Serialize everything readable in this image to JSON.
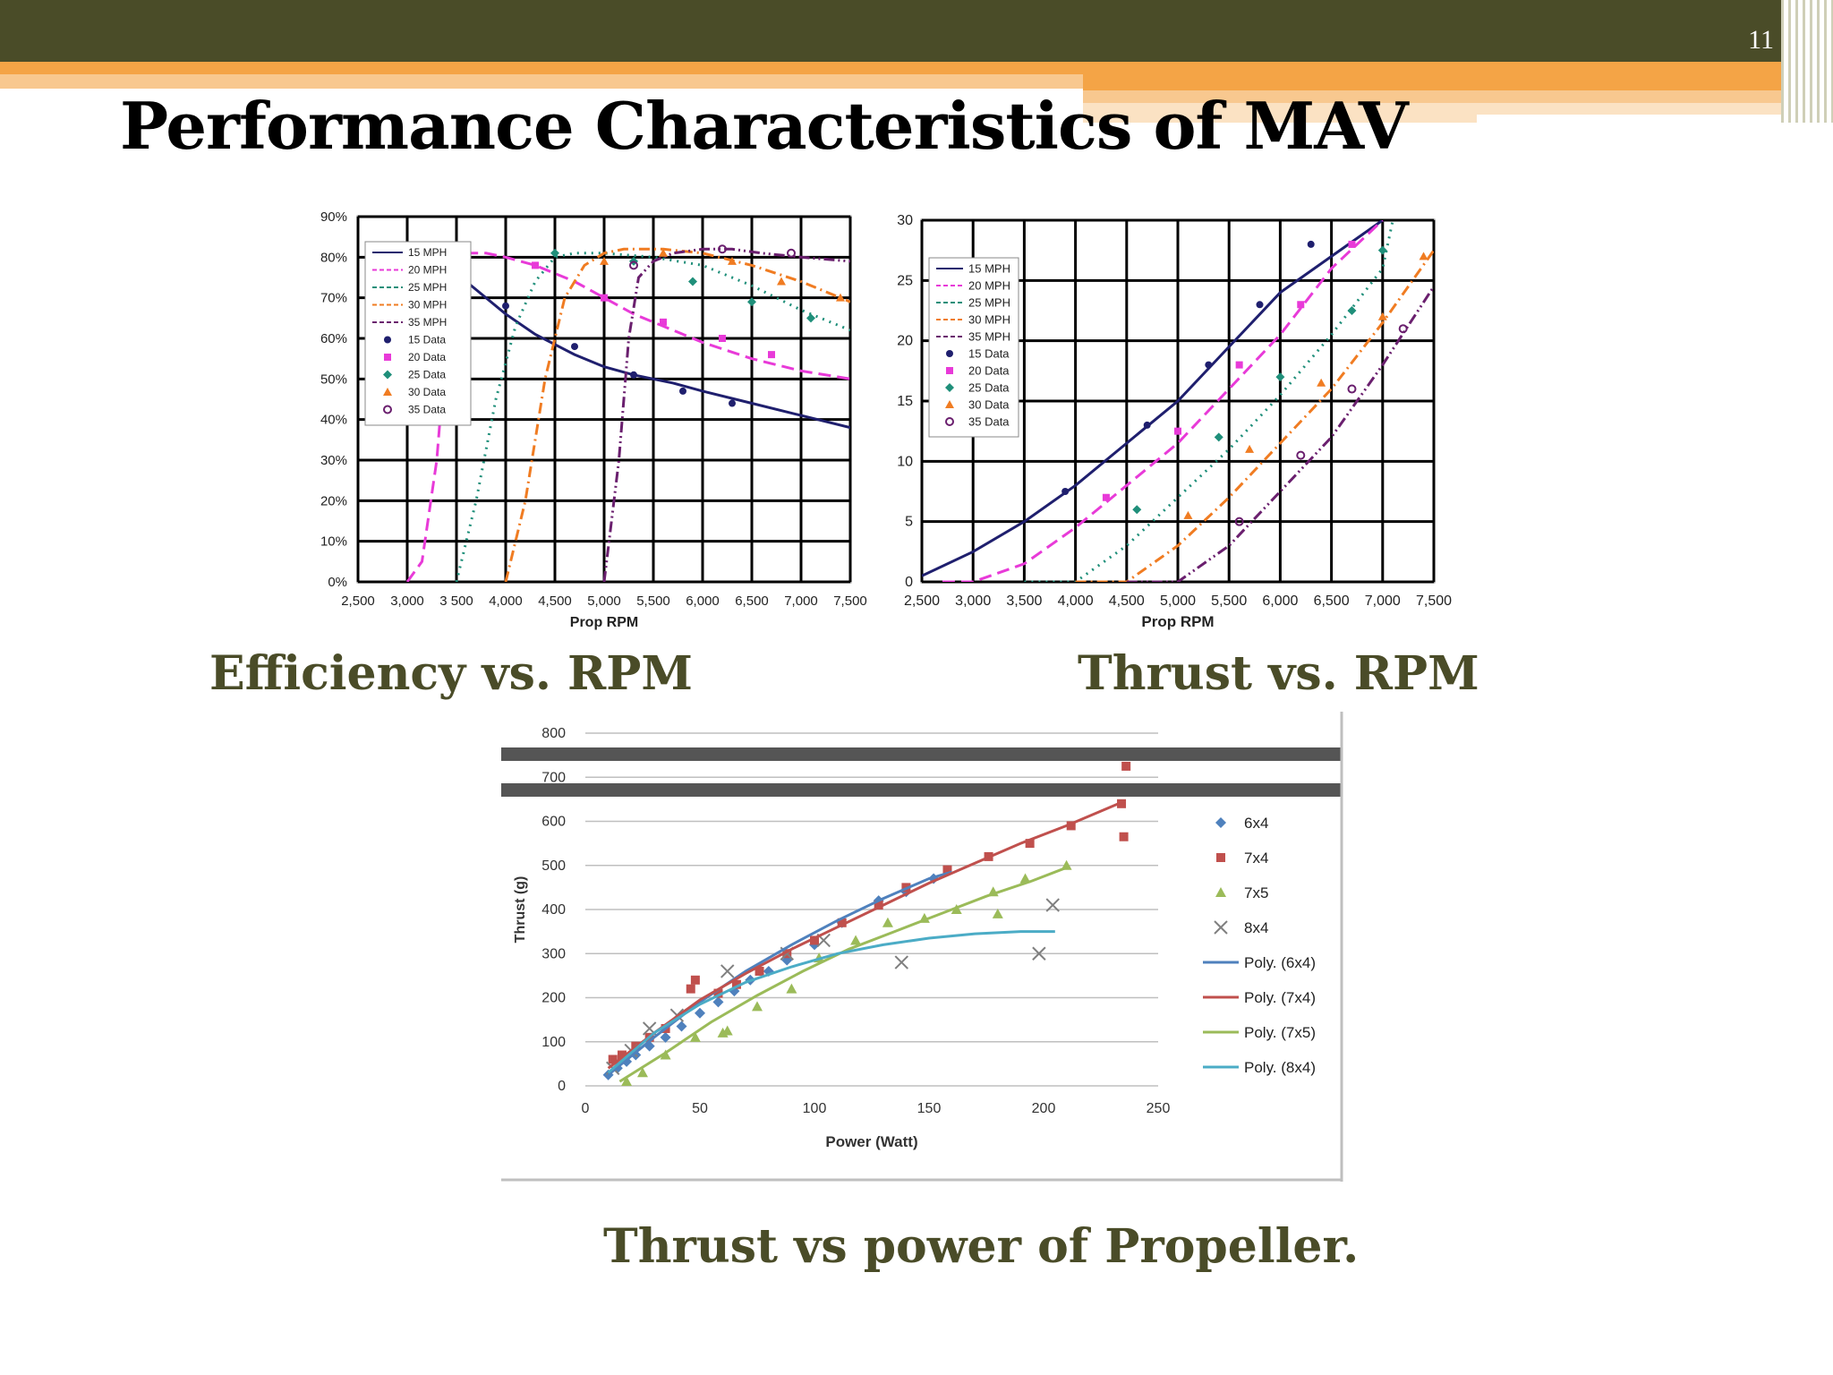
{
  "slide": {
    "number": "11",
    "title": "Performance Characteristics of MAV",
    "colors": {
      "bar": "#4a4c28",
      "accent": "#f4a446",
      "accent_light": "#f8c88f",
      "caption": "#4a4c28"
    }
  },
  "captions": {
    "efficiency": "Efficiency vs. RPM",
    "thrust_rpm": "Thrust vs. RPM",
    "thrust_power": "Thrust vs power of Propeller."
  },
  "chart_data": [
    {
      "type": "line",
      "xlabel": "Prop RPM",
      "ylabel": "",
      "xlim": [
        2500,
        7500
      ],
      "ylim": [
        0,
        90
      ],
      "x_ticks": [
        "2,500",
        "3,000",
        "3 500",
        "4,000",
        "4,500",
        "5,000",
        "5,500",
        "6,000",
        "6,500",
        "7,000",
        "7,500"
      ],
      "y_ticks": [
        "0%",
        "10%",
        "20%",
        "30%",
        "40%",
        "50%",
        "60%",
        "70%",
        "80%",
        "90%"
      ],
      "grid": true,
      "legend_position": "top-left",
      "series": [
        {
          "name": "15 MPH",
          "color": "#1f1f6e",
          "style": "solid",
          "x": [
            3000,
            3300,
            3500,
            3700,
            4000,
            4300,
            4700,
            5000,
            5300,
            5700,
            6000,
            6500,
            7000,
            7500
          ],
          "y": [
            80,
            79,
            76,
            72,
            66,
            61,
            56,
            53,
            51,
            49,
            47,
            44,
            41,
            38
          ]
        },
        {
          "name": "20 MPH",
          "color": "#e83ad8",
          "style": "dash",
          "x": [
            3000,
            3150,
            3300,
            3400,
            3500,
            3600,
            3800,
            4000,
            4300,
            4700,
            5000,
            5300,
            5700,
            6000,
            6500,
            7000,
            7500
          ],
          "y": [
            0,
            5,
            30,
            60,
            78,
            81,
            81,
            80,
            78,
            74,
            70,
            66,
            62,
            59,
            55,
            52,
            50
          ]
        },
        {
          "name": "25 MPH",
          "color": "#1f8f7a",
          "style": "dot",
          "x": [
            3500,
            3700,
            3900,
            4100,
            4300,
            4500,
            4700,
            5000,
            5500,
            6000,
            6500,
            7000,
            7500
          ],
          "y": [
            0,
            20,
            45,
            63,
            74,
            80,
            81,
            81,
            80,
            78,
            73,
            67,
            62
          ]
        },
        {
          "name": "30 MPH",
          "color": "#f07c22",
          "style": "dashdot",
          "x": [
            4000,
            4200,
            4400,
            4600,
            4800,
            5000,
            5200,
            5600,
            6000,
            6500,
            7000,
            7500
          ],
          "y": [
            0,
            20,
            50,
            70,
            78,
            81,
            82,
            82,
            81,
            78,
            74,
            69
          ]
        },
        {
          "name": "35 MPH",
          "color": "#6a1f6e",
          "style": "dashdotdot",
          "x": [
            5000,
            5150,
            5250,
            5350,
            5500,
            5700,
            6000,
            6300,
            6600,
            7000,
            7500
          ],
          "y": [
            0,
            30,
            60,
            75,
            79,
            81,
            82,
            82,
            81,
            80,
            79
          ]
        },
        {
          "name": "15 Data",
          "color": "#1f1f6e",
          "marker": "circle",
          "x": [
            3200,
            4000,
            4700,
            5300,
            5800,
            6300
          ],
          "y": [
            77,
            68,
            58,
            51,
            47,
            44
          ]
        },
        {
          "name": "20 Data",
          "color": "#e83ad8",
          "marker": "square",
          "x": [
            3500,
            4300,
            5000,
            5600,
            6200,
            6700
          ],
          "y": [
            80,
            78,
            70,
            64,
            60,
            56
          ]
        },
        {
          "name": "25 Data",
          "color": "#1f8f7a",
          "marker": "diamond",
          "x": [
            4500,
            5300,
            5900,
            6500,
            7100
          ],
          "y": [
            81,
            79,
            74,
            69,
            65
          ]
        },
        {
          "name": "30 Data",
          "color": "#f07c22",
          "marker": "triangle",
          "x": [
            5000,
            5600,
            6300,
            6800,
            7400
          ],
          "y": [
            79,
            81,
            79,
            74,
            70
          ]
        },
        {
          "name": "35 Data",
          "color": "#6a1f6e",
          "marker": "ring",
          "x": [
            5300,
            6200,
            6900
          ],
          "y": [
            78,
            82,
            81
          ]
        }
      ]
    },
    {
      "type": "line",
      "xlabel": "Prop RPM",
      "ylabel": "",
      "xlim": [
        2500,
        7500
      ],
      "ylim": [
        0,
        30
      ],
      "x_ticks": [
        "2,500",
        "3,000",
        "3,500",
        "4,000",
        "4,500",
        "5,000",
        "5,500",
        "6,000",
        "6,500",
        "7,000",
        "7,500"
      ],
      "y_ticks": [
        "0",
        "5",
        "10",
        "15",
        "20",
        "25",
        "30"
      ],
      "grid": true,
      "legend_position": "top-left",
      "series": [
        {
          "name": "15 MPH",
          "color": "#1f1f6e",
          "style": "solid",
          "x": [
            2500,
            3000,
            3500,
            4000,
            4500,
            5000,
            5500,
            6000,
            6500,
            7000
          ],
          "y": [
            0.5,
            2.5,
            5,
            8,
            11.5,
            15,
            19.5,
            24,
            27,
            30
          ]
        },
        {
          "name": "20 MPH",
          "color": "#e83ad8",
          "style": "dash",
          "x": [
            2700,
            3000,
            3500,
            4000,
            4500,
            5000,
            5500,
            6000,
            6500,
            7000
          ],
          "y": [
            0,
            0,
            1.5,
            4.5,
            8,
            11.5,
            16,
            20.5,
            26,
            30
          ]
        },
        {
          "name": "25 MPH",
          "color": "#1f8f7a",
          "style": "dot",
          "x": [
            3500,
            4000,
            4500,
            5000,
            5500,
            6000,
            6500,
            7000,
            7100
          ],
          "y": [
            0,
            0,
            3,
            7,
            11,
            15.5,
            20.5,
            26,
            30
          ]
        },
        {
          "name": "30 MPH",
          "color": "#f07c22",
          "style": "dashdot",
          "x": [
            4000,
            4500,
            5000,
            5500,
            6000,
            6500,
            7000,
            7500
          ],
          "y": [
            0,
            0,
            3,
            7,
            11.5,
            16,
            21.5,
            27.5
          ]
        },
        {
          "name": "35 MPH",
          "color": "#6a1f6e",
          "style": "dashdotdot",
          "x": [
            4500,
            5000,
            5500,
            6000,
            6500,
            7000,
            7500
          ],
          "y": [
            0,
            0,
            3,
            7.5,
            12,
            18,
            24.5
          ]
        },
        {
          "name": "15 Data",
          "color": "#1f1f6e",
          "marker": "circle",
          "x": [
            3900,
            4700,
            5300,
            5800,
            6300
          ],
          "y": [
            7.5,
            13,
            18,
            23,
            28
          ]
        },
        {
          "name": "20 Data",
          "color": "#e83ad8",
          "marker": "square",
          "x": [
            4300,
            5000,
            5600,
            6200,
            6700
          ],
          "y": [
            7,
            12.5,
            18,
            23,
            28
          ]
        },
        {
          "name": "25 Data",
          "color": "#1f8f7a",
          "marker": "diamond",
          "x": [
            4600,
            5400,
            6000,
            6700,
            7000
          ],
          "y": [
            6,
            12,
            17,
            22.5,
            27.5
          ]
        },
        {
          "name": "30 Data",
          "color": "#f07c22",
          "marker": "triangle",
          "x": [
            5100,
            5700,
            6400,
            7000,
            7400
          ],
          "y": [
            5.5,
            11,
            16.5,
            22,
            27
          ]
        },
        {
          "name": "35 Data",
          "color": "#6a1f6e",
          "marker": "ring",
          "x": [
            5600,
            6200,
            6700,
            7200
          ],
          "y": [
            5,
            10.5,
            16,
            21
          ]
        }
      ]
    },
    {
      "type": "scatter",
      "xlabel": "Power (Watt)",
      "ylabel": "Thrust (g)",
      "xlim": [
        0,
        250
      ],
      "ylim": [
        0,
        800
      ],
      "x_ticks": [
        "0",
        "50",
        "100",
        "150",
        "200",
        "250"
      ],
      "y_ticks": [
        "0",
        "100",
        "200",
        "300",
        "400",
        "500",
        "600",
        "700",
        "800"
      ],
      "grid": true,
      "legend_position": "right",
      "series": [
        {
          "name": "6x4",
          "color": "#4f81bd",
          "marker": "diamond",
          "x": [
            10,
            14,
            18,
            22,
            28,
            35,
            42,
            50,
            58,
            65,
            72,
            80,
            88,
            100,
            112,
            128,
            140,
            152
          ],
          "y": [
            25,
            40,
            55,
            70,
            90,
            110,
            135,
            165,
            190,
            215,
            240,
            260,
            285,
            320,
            370,
            420,
            440,
            470
          ]
        },
        {
          "name": "7x4",
          "color": "#c0504d",
          "marker": "square",
          "x": [
            12,
            16,
            22,
            28,
            35,
            46,
            48,
            58,
            66,
            76,
            88,
            100,
            112,
            128,
            140,
            158,
            176,
            194,
            212,
            234,
            235,
            236
          ],
          "y": [
            60,
            70,
            90,
            110,
            130,
            220,
            240,
            210,
            230,
            260,
            300,
            330,
            370,
            410,
            450,
            490,
            520,
            550,
            590,
            640,
            565,
            725
          ]
        },
        {
          "name": "7x5",
          "color": "#9bbb59",
          "marker": "triangle",
          "x": [
            18,
            25,
            35,
            48,
            60,
            62,
            75,
            90,
            102,
            118,
            132,
            148,
            162,
            178,
            192,
            210,
            180
          ],
          "y": [
            10,
            30,
            70,
            110,
            120,
            125,
            180,
            220,
            290,
            330,
            370,
            380,
            400,
            440,
            470,
            500,
            390
          ]
        },
        {
          "name": "8x4",
          "color": "#7f7f7f",
          "marker": "x",
          "x": [
            12,
            20,
            28,
            40,
            62,
            88,
            104,
            138,
            198,
            204
          ],
          "y": [
            40,
            80,
            130,
            160,
            260,
            300,
            330,
            280,
            300,
            410
          ]
        },
        {
          "name": "Poly. (6x4)",
          "color": "#4f81bd",
          "style": "solid",
          "x": [
            10,
            30,
            50,
            70,
            90,
            110,
            130,
            150,
            160
          ],
          "y": [
            25,
            110,
            190,
            260,
            320,
            375,
            425,
            470,
            485
          ]
        },
        {
          "name": "Poly. (7x4)",
          "color": "#c0504d",
          "style": "solid",
          "x": [
            10,
            30,
            50,
            70,
            90,
            110,
            130,
            150,
            170,
            190,
            210,
            235
          ],
          "y": [
            40,
            120,
            195,
            255,
            310,
            360,
            410,
            460,
            505,
            550,
            590,
            645
          ]
        },
        {
          "name": "Poly. (7x5)",
          "color": "#9bbb59",
          "style": "solid",
          "x": [
            15,
            35,
            55,
            75,
            95,
            115,
            135,
            155,
            175,
            195,
            210
          ],
          "y": [
            10,
            75,
            145,
            205,
            260,
            310,
            350,
            390,
            430,
            465,
            495
          ]
        },
        {
          "name": "Poly. (8x4)",
          "color": "#4bacc6",
          "style": "solid",
          "x": [
            10,
            30,
            50,
            70,
            90,
            110,
            130,
            150,
            170,
            190,
            205
          ],
          "y": [
            30,
            120,
            185,
            235,
            270,
            300,
            320,
            335,
            345,
            350,
            350
          ]
        }
      ]
    }
  ]
}
